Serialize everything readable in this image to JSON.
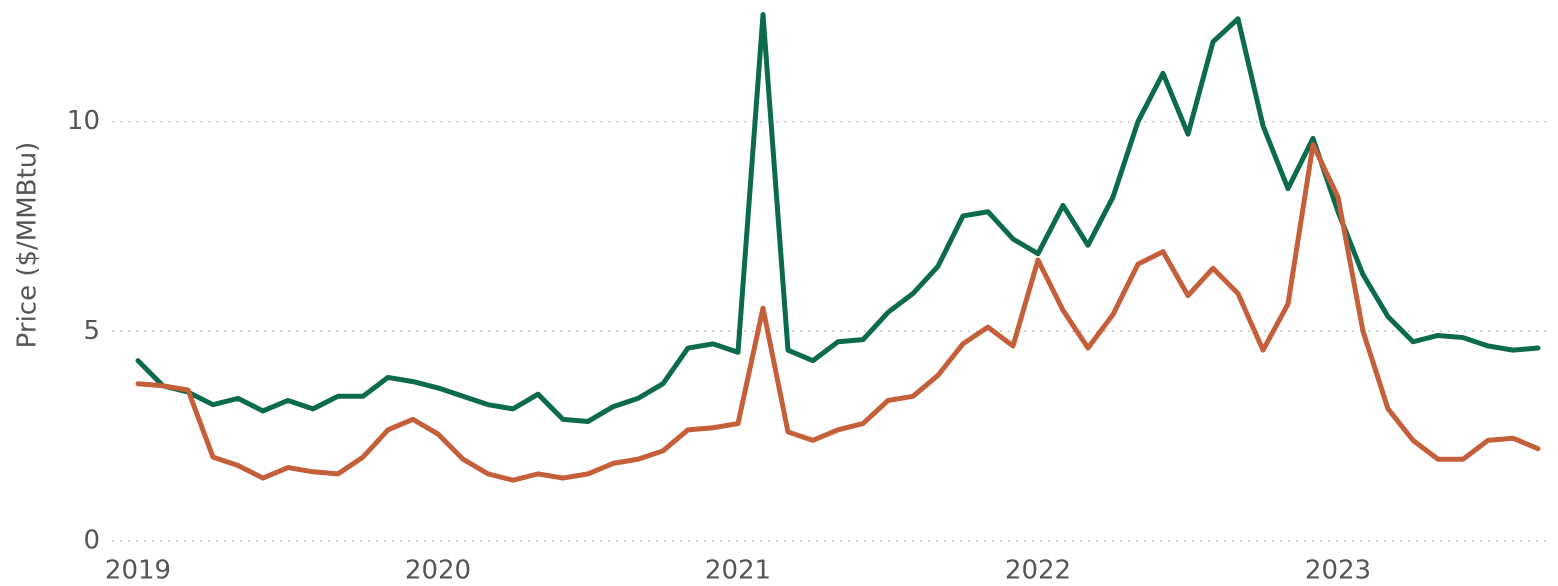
{
  "chart_data": {
    "type": "line",
    "y_label": "Price ($/MMBtu)",
    "categories": [
      "2019",
      null,
      null,
      null,
      null,
      null,
      null,
      null,
      null,
      null,
      null,
      null,
      "2020",
      null,
      null,
      null,
      null,
      null,
      null,
      null,
      null,
      null,
      null,
      null,
      "2021",
      null,
      null,
      null,
      null,
      null,
      null,
      null,
      null,
      null,
      null,
      null,
      "2022",
      null,
      null,
      null,
      null,
      null,
      null,
      null,
      null,
      null,
      null,
      null,
      "2023",
      null,
      null,
      null,
      null,
      null,
      null,
      null,
      null
    ],
    "series": [
      {
        "color": "#0b6b4c",
        "values": [
          4.3,
          3.7,
          3.55,
          3.25,
          3.4,
          3.1,
          3.35,
          3.15,
          3.45,
          3.45,
          3.9,
          3.8,
          3.65,
          3.45,
          3.25,
          3.15,
          3.5,
          2.9,
          2.85,
          3.2,
          3.4,
          3.75,
          4.6,
          4.7,
          4.5,
          12.55,
          4.55,
          4.3,
          4.75,
          4.8,
          5.45,
          5.9,
          6.55,
          7.75,
          7.85,
          7.2,
          6.85,
          8.0,
          7.05,
          8.2,
          10.0,
          11.15,
          9.7,
          11.9,
          12.45,
          9.9,
          8.4,
          9.6,
          7.85,
          6.35,
          5.35,
          4.75,
          4.9,
          4.85,
          4.65,
          4.55,
          4.6
        ]
      },
      {
        "color": "#c45f3a",
        "values": [
          3.75,
          3.7,
          3.6,
          2.0,
          1.8,
          1.5,
          1.75,
          1.65,
          1.6,
          2.0,
          2.65,
          2.9,
          2.55,
          1.95,
          1.6,
          1.45,
          1.6,
          1.5,
          1.6,
          1.85,
          1.95,
          2.15,
          2.65,
          2.7,
          2.8,
          5.55,
          2.6,
          2.4,
          2.65,
          2.8,
          3.35,
          3.45,
          3.95,
          4.7,
          5.1,
          4.65,
          6.7,
          5.5,
          4.6,
          5.4,
          6.6,
          6.9,
          5.85,
          6.5,
          5.9,
          4.55,
          5.65,
          9.45,
          8.2,
          5.0,
          3.15,
          2.4,
          1.95,
          1.95,
          2.4,
          2.45,
          2.2
        ]
      }
    ],
    "ylim": [
      0,
      12.85
    ],
    "yticks": [
      0,
      5,
      10
    ],
    "grid": true
  }
}
